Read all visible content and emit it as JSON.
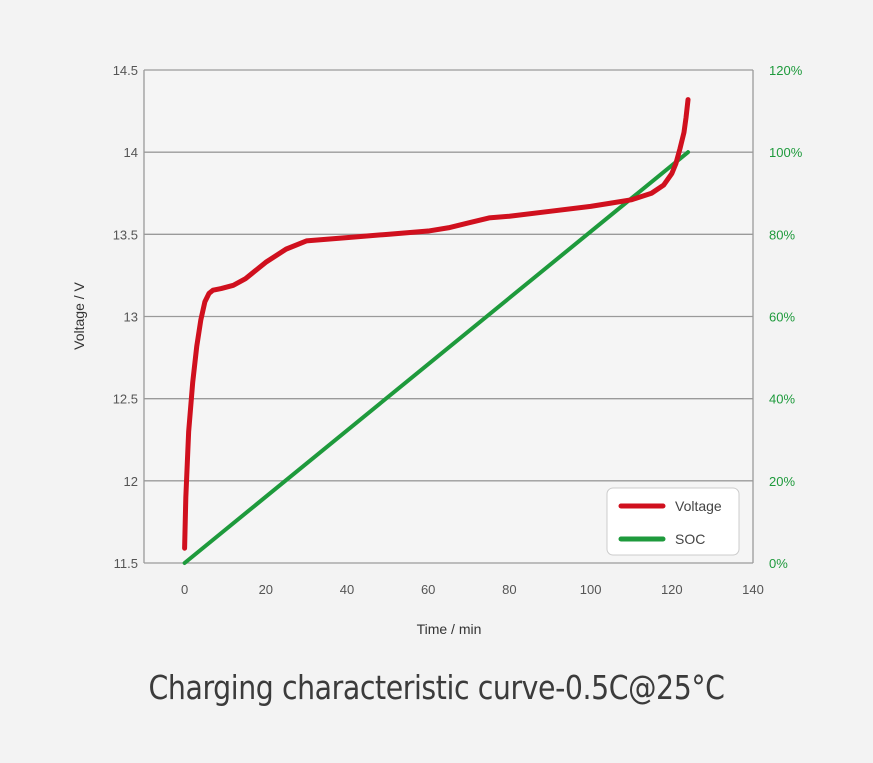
{
  "caption": "Charging characteristic curve-0.5C@25°C",
  "chart_data": {
    "type": "line",
    "title": "",
    "xlabel": "Time / min",
    "ylabel": "Voltage / V",
    "xlim": [
      -10,
      140
    ],
    "ylim": [
      11.5,
      14.5
    ],
    "y2lim": [
      0,
      120
    ],
    "x_ticks": [
      "0",
      "20",
      "40",
      "60",
      "80",
      "100",
      "120",
      "140"
    ],
    "y_ticks": [
      "11.5",
      "12",
      "12.5",
      "13",
      "13.5",
      "14",
      "14.5"
    ],
    "y2_ticks": [
      "0%",
      "20%",
      "40%",
      "60%",
      "80%",
      "100%",
      "120%"
    ],
    "grid": "horizontal",
    "legend_position": "bottom-right",
    "colors": {
      "voltage": "#d0101e",
      "soc": "#1e9a3c",
      "grid": "#9a9a9a"
    },
    "series": [
      {
        "name": "Voltage",
        "axis": "left",
        "x": [
          0,
          0.3,
          1,
          2,
          3,
          4,
          5,
          6,
          7,
          9,
          12,
          15,
          20,
          25,
          30,
          40,
          50,
          60,
          65,
          70,
          75,
          80,
          90,
          100,
          105,
          110,
          115,
          118,
          120,
          121,
          122,
          123,
          123.5,
          124
        ],
        "y": [
          11.59,
          11.9,
          12.3,
          12.6,
          12.82,
          12.98,
          13.09,
          13.14,
          13.16,
          13.17,
          13.19,
          13.23,
          13.33,
          13.41,
          13.46,
          13.48,
          13.5,
          13.52,
          13.54,
          13.57,
          13.6,
          13.61,
          13.64,
          13.67,
          13.69,
          13.71,
          13.75,
          13.8,
          13.87,
          13.93,
          14.02,
          14.12,
          14.21,
          14.32
        ]
      },
      {
        "name": "SOC",
        "axis": "right",
        "x": [
          0,
          124
        ],
        "y": [
          0,
          100
        ]
      }
    ]
  }
}
